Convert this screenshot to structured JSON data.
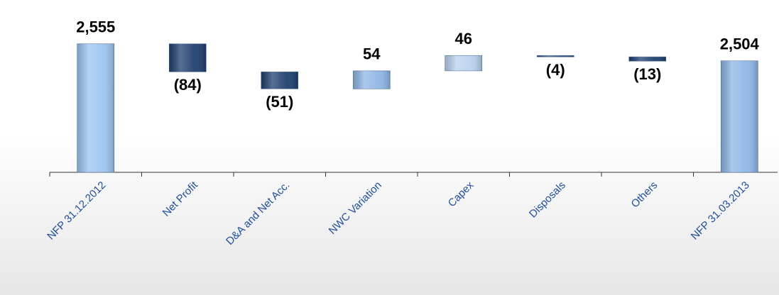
{
  "chart_data": {
    "type": "waterfall",
    "categories": [
      "NFP 31.12.2012",
      "Net Profit",
      "D&A  and Net Acc.",
      "NWC Variation",
      "Capex",
      "Disposals",
      "Others",
      "NFP 31.03.2013"
    ],
    "values": [
      2555,
      -84,
      -51,
      54,
      46,
      -4,
      -13,
      2504
    ],
    "value_labels": [
      "2,555",
      "(84)",
      "(51)",
      "54",
      "46",
      "(4)",
      "(13)",
      "2,504"
    ],
    "is_total": [
      true,
      false,
      false,
      false,
      false,
      false,
      false,
      true
    ],
    "colors": [
      "#9cc5ef",
      "#1f3f6e",
      "#1f3f6e",
      "#8fb6e6",
      "#b9d2ee",
      "#2a4a78",
      "#1f3f6e",
      "#8fb6e6"
    ],
    "ylim": [
      2170,
      2580
    ]
  }
}
